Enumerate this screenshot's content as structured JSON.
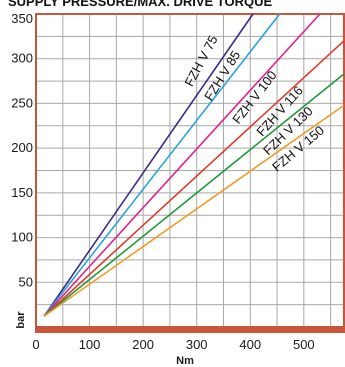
{
  "chart_data": {
    "type": "line",
    "title": "SUPPLY PRESSURE/MAX. DRIVE TORQUE",
    "xlabel": "Nm",
    "ylabel": "bar",
    "xlim": [
      0,
      575
    ],
    "ylim": [
      0,
      350
    ],
    "xticks": [
      0,
      100,
      200,
      300,
      400,
      500
    ],
    "yticks": [
      50,
      100,
      150,
      200,
      250,
      300,
      350
    ],
    "grid": true,
    "colors": {
      "frame": "#c8563a",
      "grid": "#a8a8a8",
      "background": "#ffffff"
    },
    "series": [
      {
        "name": "FZH V 75",
        "color": "#3b2a8a",
        "x": [
          15,
          405
        ],
        "y": [
          12,
          350
        ]
      },
      {
        "name": "FZH V 85",
        "color": "#29a3dc",
        "x": [
          15,
          455
        ],
        "y": [
          12,
          350
        ]
      },
      {
        "name": "FZH V 100",
        "color": "#e0218a",
        "x": [
          15,
          530
        ],
        "y": [
          12,
          350
        ]
      },
      {
        "name": "FZH V 116",
        "color": "#e03a2a",
        "x": [
          15,
          575
        ],
        "y": [
          12,
          320
        ]
      },
      {
        "name": "FZH V 130",
        "color": "#1e9a3a",
        "x": [
          15,
          575
        ],
        "y": [
          12,
          283
        ]
      },
      {
        "name": "FZH V 150",
        "color": "#f09a28",
        "x": [
          15,
          575
        ],
        "y": [
          12,
          248
        ]
      }
    ]
  }
}
